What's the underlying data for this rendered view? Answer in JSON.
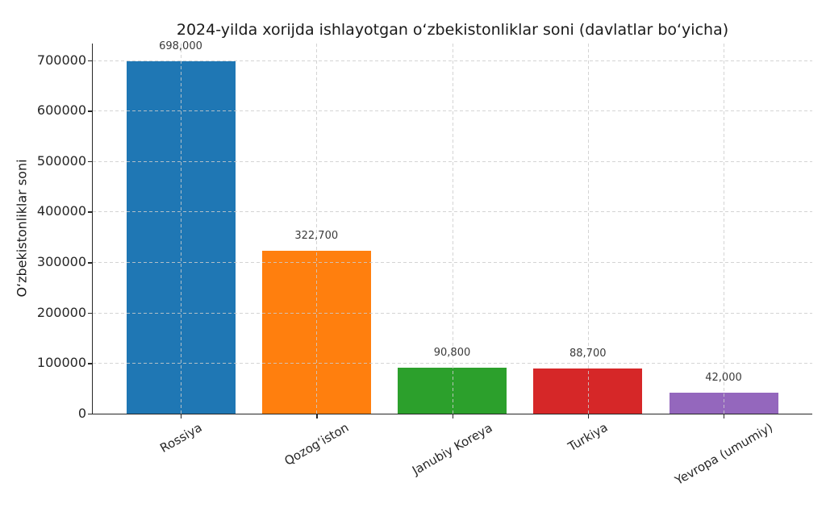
{
  "chart_data": {
    "type": "bar",
    "title": "2024-yilda xorijda ishlayotgan o‘zbekistonliklar soni (davlatlar bo‘yicha)",
    "xlabel": "",
    "ylabel": "O‘zbekistonliklar soni",
    "categories": [
      "Rossiya",
      "Qozog‘iston",
      "Janubiy Koreya",
      "Turkiya",
      "Yevropa (umumiy)"
    ],
    "values": [
      698000,
      322700,
      90800,
      88700,
      42000
    ],
    "value_labels": [
      "698,000",
      "322,700",
      "90,800",
      "88,700",
      "42,000"
    ],
    "bar_colors": [
      "#1f77b4",
      "#ff7f0e",
      "#2ca02c",
      "#d62728",
      "#9467bd"
    ],
    "yticks": [
      0,
      100000,
      200000,
      300000,
      400000,
      500000,
      600000,
      700000
    ],
    "ylim": [
      0,
      732900
    ],
    "grid": "both-dashed",
    "grid_color": "#cccccc",
    "axis_color": "#262626",
    "x_tick_rotation_deg": 30,
    "legend": "none"
  }
}
